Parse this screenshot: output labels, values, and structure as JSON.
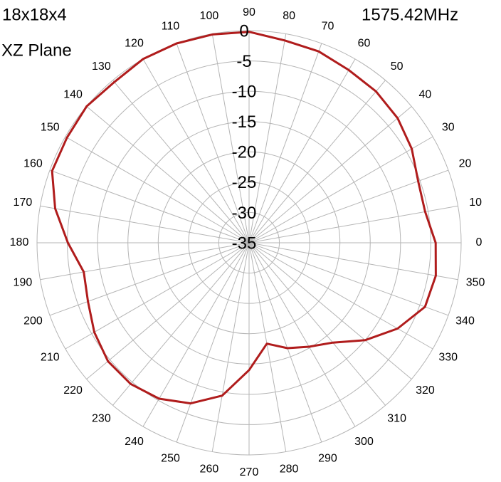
{
  "chart_data": {
    "type": "polar",
    "annotations": [
      "18x18x4",
      "XZ Plane",
      "1575.42MHz"
    ],
    "theta": [
      0,
      10,
      20,
      30,
      40,
      50,
      60,
      70,
      80,
      90,
      100,
      110,
      120,
      130,
      140,
      150,
      160,
      170,
      180,
      190,
      200,
      210,
      220,
      230,
      240,
      250,
      260,
      270,
      280,
      290,
      300,
      310,
      320,
      330,
      340,
      350
    ],
    "values": [
      -4.2,
      -5.5,
      -5.3,
      -4.0,
      -3.0,
      -2.4,
      -2.1,
      -1.4,
      -1.1,
      -0.2,
      -0.1,
      0,
      0,
      -0.4,
      0,
      -0.3,
      -0.4,
      -2.5,
      -5.1,
      -7.3,
      -6.7,
      -5.5,
      -4.6,
      -4.6,
      -5.3,
      -6.8,
      -9.4,
      -14.0,
      -18.1,
      -16.5,
      -15.2,
      -13.5,
      -10.0,
      -6.7,
      -4.1,
      -3.7
    ],
    "color": "#b01c1c",
    "rlim": [
      -35,
      0
    ],
    "rticks": [
      0,
      -5,
      -10,
      -15,
      -20,
      -25,
      -30,
      -35
    ],
    "thetaticks": [
      0,
      10,
      20,
      30,
      40,
      50,
      60,
      70,
      80,
      90,
      100,
      110,
      120,
      130,
      140,
      150,
      160,
      170,
      180,
      190,
      200,
      210,
      220,
      230,
      240,
      250,
      260,
      270,
      280,
      290,
      300,
      310,
      320,
      330,
      340,
      350
    ],
    "grid": true
  }
}
